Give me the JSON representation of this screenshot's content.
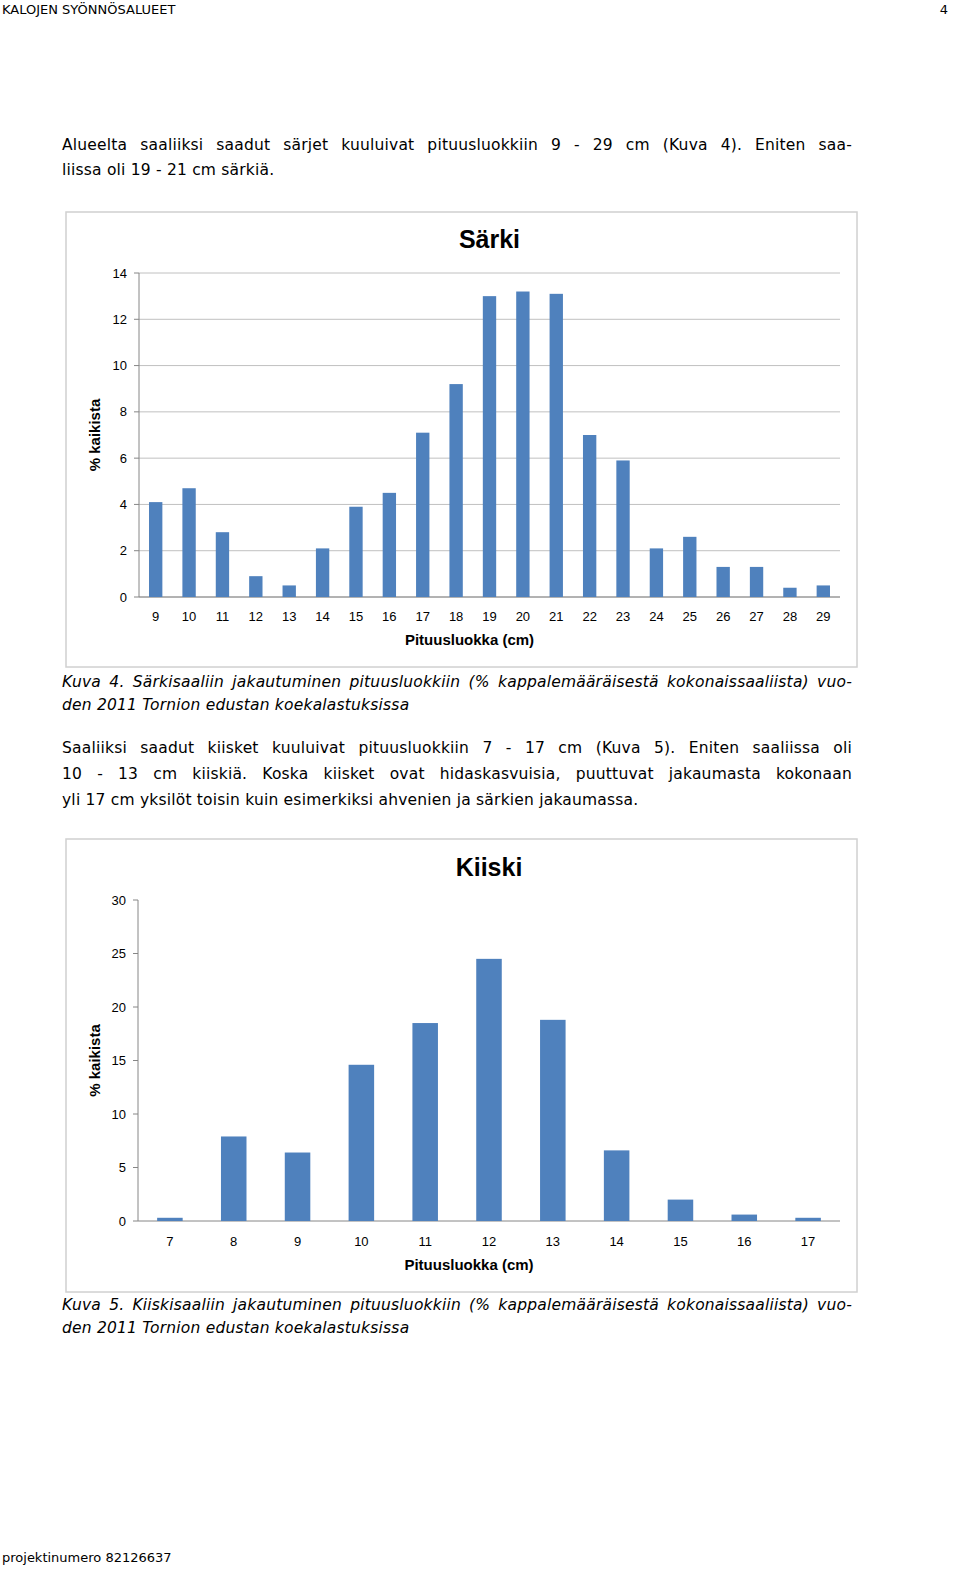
{
  "header": {
    "left": "KALOJEN SYÖNNÖSALUEET",
    "right": "4"
  },
  "paragraphs": [
    [
      "Alueelta saaliiksi saadut särjet kuuluivat pituusluokkiin 9 - 29 cm (Kuva 4). Eniten saa-",
      "liissa oli 19 - 21 cm särkiä."
    ],
    [
      "Saaliiksi saadut kiisket kuuluivat pituusluokkiin 7 - 17 cm (Kuva 5). Eniten saaliissa oli",
      "10 - 13 cm kiiskiä. Koska kiisket ovat hidaskasvuisia, puuttuvat jakaumasta kokonaan",
      "yli 17 cm yksilöt toisin kuin esimerkiksi ahvenien ja särkien jakaumassa."
    ]
  ],
  "captions": [
    [
      "Kuva 4. Särkisaaliin jakautuminen pituusluokkiin (% kappalemääräisestä kokonaissaaliista) vuo-",
      "den 2011 Tornion edustan koekalastuksissa"
    ],
    [
      "Kuva 5. Kiiskisaaliin jakautuminen pituusluokkiin (% kappalemääräisestä kokonaissaaliista) vuo-",
      "den 2011 Tornion edustan koekalastuksissa"
    ]
  ],
  "footer": "projektinumero 82126637",
  "chart_data": [
    {
      "type": "bar",
      "title": "Särki",
      "x_label": "Pituusluokka (cm)",
      "y_label": "% kaikista",
      "categories": [
        "9",
        "10",
        "11",
        "12",
        "13",
        "14",
        "15",
        "16",
        "17",
        "18",
        "19",
        "20",
        "21",
        "22",
        "23",
        "24",
        "25",
        "26",
        "27",
        "28",
        "29"
      ],
      "values": [
        4.1,
        4.7,
        2.8,
        0.9,
        0.5,
        2.1,
        3.9,
        4.5,
        7.1,
        9.2,
        13.0,
        13.2,
        13.1,
        7.0,
        5.9,
        2.1,
        2.6,
        1.3,
        1.3,
        0.4,
        0.5
      ],
      "color": "#4f81bd",
      "ylim": [
        0,
        14
      ],
      "yticks": [
        0,
        2,
        4,
        6,
        8,
        10,
        12,
        14
      ],
      "grid": true
    },
    {
      "type": "bar",
      "title": "Kiiski",
      "x_label": "Pituusluokka (cm)",
      "y_label": "% kaikista",
      "categories": [
        "7",
        "8",
        "9",
        "10",
        "11",
        "12",
        "13",
        "14",
        "15",
        "16",
        "17"
      ],
      "values": [
        0.3,
        7.9,
        6.4,
        14.6,
        18.5,
        24.5,
        18.8,
        6.6,
        2.0,
        0.6,
        0.3
      ],
      "color": "#4f81bd",
      "ylim": [
        0,
        30
      ],
      "yticks": [
        0,
        5,
        10,
        15,
        20,
        25,
        30
      ],
      "grid": false
    }
  ]
}
